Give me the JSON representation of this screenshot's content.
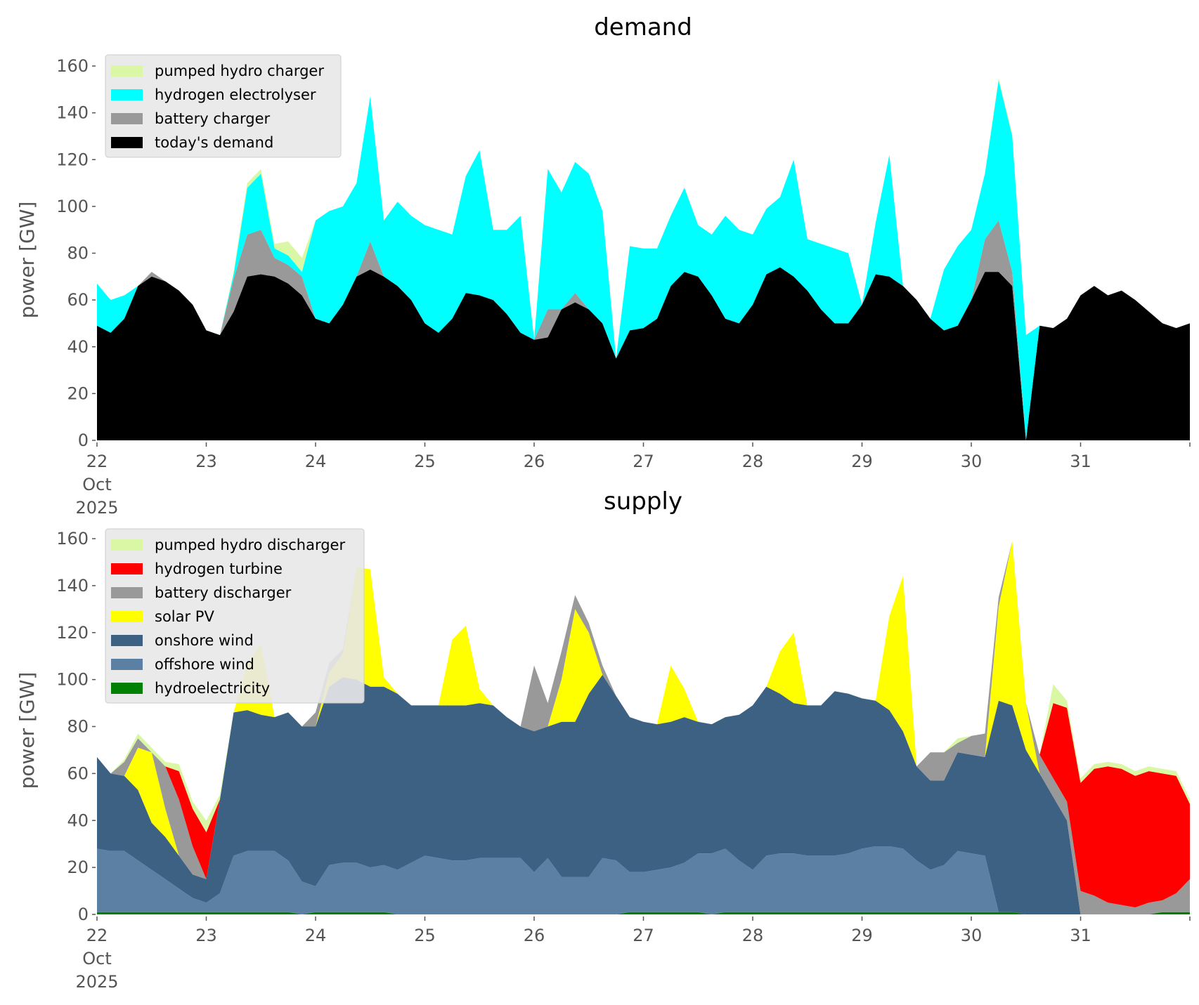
{
  "chart_data": [
    {
      "type": "area",
      "stacked": true,
      "title": "demand",
      "xlabel": "",
      "ylabel": "power [GW]",
      "ylim": [
        0,
        165
      ],
      "yticks": [
        0,
        20,
        40,
        60,
        80,
        100,
        120,
        140,
        160
      ],
      "xticks": [
        "22\nOct\n2025",
        "23",
        "24",
        "25",
        "26",
        "27",
        "28",
        "29",
        "30",
        "31"
      ],
      "x_start": "2025-10-22T00:00",
      "x_step_hours": 3,
      "legend_position": "upper-left",
      "grid": false,
      "series": [
        {
          "name": "today's demand",
          "color": "#000000",
          "values": [
            49,
            46,
            52,
            66,
            70,
            68,
            64,
            58,
            47,
            45,
            55,
            70,
            71,
            70,
            67,
            62,
            52,
            50,
            58,
            70,
            73,
            70,
            66,
            60,
            50,
            46,
            52,
            63,
            62,
            60,
            54,
            46,
            43,
            44,
            56,
            59,
            56,
            50,
            35,
            47,
            48,
            52,
            66,
            72,
            70,
            62,
            52,
            50,
            58,
            71,
            74,
            70,
            64,
            56,
            50,
            50,
            58,
            71,
            70,
            66,
            60,
            52,
            47,
            49,
            60,
            72,
            72,
            66,
            0,
            49,
            48,
            52,
            62,
            66,
            62,
            64,
            60,
            55,
            50,
            48,
            50
          ]
        },
        {
          "name": "battery charger",
          "color": "#999999",
          "values": [
            0,
            0,
            0,
            0,
            2,
            0,
            0,
            0,
            0,
            0,
            14,
            18,
            19,
            8,
            8,
            8,
            0,
            0,
            0,
            0,
            12,
            0,
            0,
            0,
            0,
            0,
            0,
            0,
            0,
            0,
            0,
            0,
            0,
            12,
            0,
            4,
            0,
            0,
            0,
            0,
            0,
            0,
            0,
            0,
            0,
            0,
            0,
            0,
            0,
            0,
            0,
            0,
            0,
            0,
            0,
            0,
            0,
            0,
            0,
            0,
            0,
            0,
            0,
            0,
            0,
            14,
            22,
            6,
            0,
            0,
            0,
            0,
            0,
            0,
            0,
            0,
            0,
            0,
            0,
            0,
            0
          ]
        },
        {
          "name": "hydrogen electrolyser",
          "color": "#00ffff",
          "values": [
            18,
            14,
            10,
            0,
            0,
            0,
            0,
            0,
            0,
            0,
            2,
            20,
            24,
            4,
            4,
            2,
            42,
            48,
            42,
            40,
            62,
            24,
            36,
            36,
            42,
            44,
            36,
            50,
            62,
            30,
            36,
            50,
            0,
            60,
            50,
            56,
            58,
            48,
            0,
            36,
            34,
            30,
            30,
            36,
            22,
            26,
            44,
            40,
            30,
            28,
            30,
            50,
            22,
            28,
            32,
            30,
            0,
            22,
            52,
            0,
            0,
            0,
            26,
            34,
            30,
            28,
            60,
            58,
            45,
            0,
            0,
            0,
            0,
            0,
            0,
            0,
            0,
            0,
            0,
            0,
            0
          ]
        },
        {
          "name": "pumped hydro charger",
          "color": "#daf7a6",
          "values": [
            0,
            0,
            0,
            0,
            0,
            0,
            0,
            0,
            0,
            0,
            1,
            2,
            2,
            2,
            6,
            6,
            0,
            0,
            0,
            0,
            0,
            0,
            0,
            0,
            0,
            0,
            0,
            0,
            0,
            0,
            0,
            0,
            0,
            0,
            0,
            0,
            0,
            0,
            0,
            0,
            0,
            0,
            0,
            0,
            0,
            0,
            0,
            0,
            0,
            0,
            0,
            0,
            0,
            0,
            0,
            0,
            0,
            0,
            0,
            0,
            0,
            0,
            0,
            0,
            0,
            0,
            1,
            1,
            0,
            0,
            0,
            0,
            0,
            0,
            0,
            0,
            0,
            0,
            0,
            0,
            0
          ]
        }
      ]
    },
    {
      "type": "area",
      "stacked": true,
      "title": "supply",
      "xlabel": "",
      "ylabel": "power [GW]",
      "ylim": [
        0,
        165
      ],
      "yticks": [
        0,
        20,
        40,
        60,
        80,
        100,
        120,
        140,
        160
      ],
      "xticks": [
        "22\nOct\n2025",
        "23",
        "24",
        "25",
        "26",
        "27",
        "28",
        "29",
        "30",
        "31"
      ],
      "x_start": "2025-10-22T00:00",
      "x_step_hours": 3,
      "legend_position": "upper-left",
      "grid": false,
      "series": [
        {
          "name": "hydroelectricity",
          "color": "#008000",
          "values": [
            1,
            1,
            1,
            1,
            1,
            1,
            1,
            1,
            1,
            1,
            1,
            1,
            1,
            1,
            1,
            0,
            1,
            1,
            1,
            1,
            1,
            1,
            0,
            0,
            0,
            0,
            0,
            0,
            0,
            0,
            0,
            0,
            0,
            0,
            0,
            0,
            0,
            0,
            0,
            1,
            1,
            1,
            1,
            1,
            1,
            0,
            1,
            1,
            1,
            1,
            1,
            1,
            1,
            1,
            1,
            1,
            1,
            1,
            1,
            1,
            1,
            1,
            1,
            1,
            1,
            1,
            1,
            1,
            0,
            0,
            0,
            0,
            0,
            0,
            0,
            0,
            0,
            0,
            1,
            1,
            1
          ]
        },
        {
          "name": "offshore wind",
          "color": "#5b80a3",
          "values": [
            27,
            26,
            26,
            22,
            18,
            14,
            10,
            6,
            4,
            8,
            24,
            26,
            26,
            26,
            22,
            14,
            11,
            20,
            21,
            21,
            19,
            20,
            19,
            22,
            25,
            24,
            23,
            23,
            24,
            24,
            24,
            24,
            18,
            24,
            16,
            16,
            16,
            24,
            23,
            17,
            17,
            18,
            19,
            21,
            25,
            26,
            27,
            22,
            18,
            24,
            25,
            25,
            24,
            24,
            24,
            25,
            27,
            28,
            28,
            27,
            22,
            18,
            20,
            26,
            25,
            24,
            0,
            0,
            0,
            0,
            0,
            0,
            0,
            0,
            0,
            0,
            0,
            0,
            0,
            0,
            0
          ]
        },
        {
          "name": "onshore wind",
          "color": "#3c6183",
          "values": [
            39,
            33,
            32,
            30,
            20,
            18,
            14,
            10,
            10,
            40,
            61,
            60,
            58,
            57,
            63,
            66,
            68,
            76,
            79,
            78,
            77,
            76,
            75,
            67,
            64,
            65,
            66,
            66,
            66,
            65,
            60,
            56,
            60,
            56,
            66,
            66,
            78,
            78,
            70,
            66,
            64,
            62,
            62,
            62,
            56,
            55,
            56,
            62,
            70,
            72,
            68,
            64,
            64,
            64,
            70,
            68,
            64,
            62,
            58,
            50,
            40,
            38,
            36,
            42,
            42,
            42,
            90,
            88,
            70,
            60,
            50,
            40,
            0,
            0,
            0,
            0,
            0,
            0,
            0,
            0,
            0
          ]
        },
        {
          "name": "solar PV",
          "color": "#ffff00",
          "values": [
            0,
            0,
            0,
            18,
            30,
            12,
            0,
            0,
            0,
            0,
            0,
            20,
            30,
            0,
            0,
            0,
            0,
            6,
            10,
            48,
            50,
            4,
            0,
            0,
            0,
            0,
            28,
            34,
            6,
            0,
            0,
            0,
            0,
            0,
            18,
            48,
            26,
            0,
            0,
            0,
            0,
            0,
            24,
            12,
            0,
            0,
            0,
            0,
            0,
            0,
            18,
            30,
            0,
            0,
            0,
            0,
            0,
            0,
            40,
            66,
            0,
            0,
            0,
            0,
            0,
            0,
            40,
            70,
            20,
            0,
            0,
            0,
            0,
            0,
            0,
            0,
            0,
            0,
            0,
            0,
            0
          ]
        },
        {
          "name": "battery discharger",
          "color": "#999999",
          "values": [
            0,
            0,
            6,
            4,
            0,
            18,
            24,
            12,
            0,
            0,
            0,
            0,
            0,
            0,
            0,
            0,
            6,
            4,
            2,
            0,
            0,
            0,
            0,
            0,
            0,
            0,
            0,
            0,
            0,
            0,
            0,
            0,
            28,
            10,
            12,
            6,
            4,
            4,
            0,
            0,
            0,
            0,
            0,
            0,
            0,
            0,
            0,
            0,
            0,
            0,
            0,
            0,
            0,
            0,
            0,
            0,
            0,
            0,
            0,
            0,
            0,
            12,
            12,
            4,
            8,
            10,
            4,
            0,
            0,
            8,
            8,
            8,
            10,
            8,
            5,
            4,
            3,
            5,
            5,
            8,
            14
          ]
        },
        {
          "name": "hydrogen turbine",
          "color": "#ff0000",
          "values": [
            0,
            0,
            0,
            0,
            0,
            0,
            12,
            16,
            20,
            0,
            0,
            0,
            0,
            0,
            0,
            0,
            0,
            0,
            0,
            0,
            0,
            0,
            0,
            0,
            0,
            0,
            0,
            0,
            0,
            0,
            0,
            0,
            0,
            0,
            0,
            0,
            0,
            0,
            0,
            0,
            0,
            0,
            0,
            0,
            0,
            0,
            0,
            0,
            0,
            0,
            0,
            0,
            0,
            0,
            0,
            0,
            0,
            0,
            0,
            0,
            0,
            0,
            0,
            0,
            0,
            0,
            0,
            0,
            0,
            0,
            32,
            40,
            46,
            54,
            58,
            58,
            56,
            56,
            54,
            50,
            32
          ]
        },
        {
          "name": "pumped hydro discharger",
          "color": "#daf7a6",
          "values": [
            0,
            0,
            1,
            2,
            2,
            2,
            3,
            3,
            5,
            2,
            0,
            0,
            0,
            0,
            0,
            0,
            0,
            0,
            0,
            0,
            0,
            0,
            0,
            0,
            0,
            0,
            0,
            0,
            0,
            0,
            0,
            0,
            0,
            0,
            0,
            0,
            0,
            0,
            0,
            0,
            0,
            0,
            0,
            0,
            0,
            0,
            0,
            0,
            0,
            0,
            0,
            0,
            0,
            0,
            0,
            0,
            0,
            0,
            0,
            0,
            0,
            0,
            0,
            2,
            0,
            0,
            0,
            0,
            0,
            0,
            8,
            3,
            2,
            2,
            2,
            2,
            2,
            2,
            2,
            2,
            2
          ]
        }
      ]
    }
  ],
  "panels": [
    {
      "title": "demand",
      "ylabel": "power [GW]"
    },
    {
      "title": "supply",
      "ylabel": "power [GW]"
    }
  ]
}
